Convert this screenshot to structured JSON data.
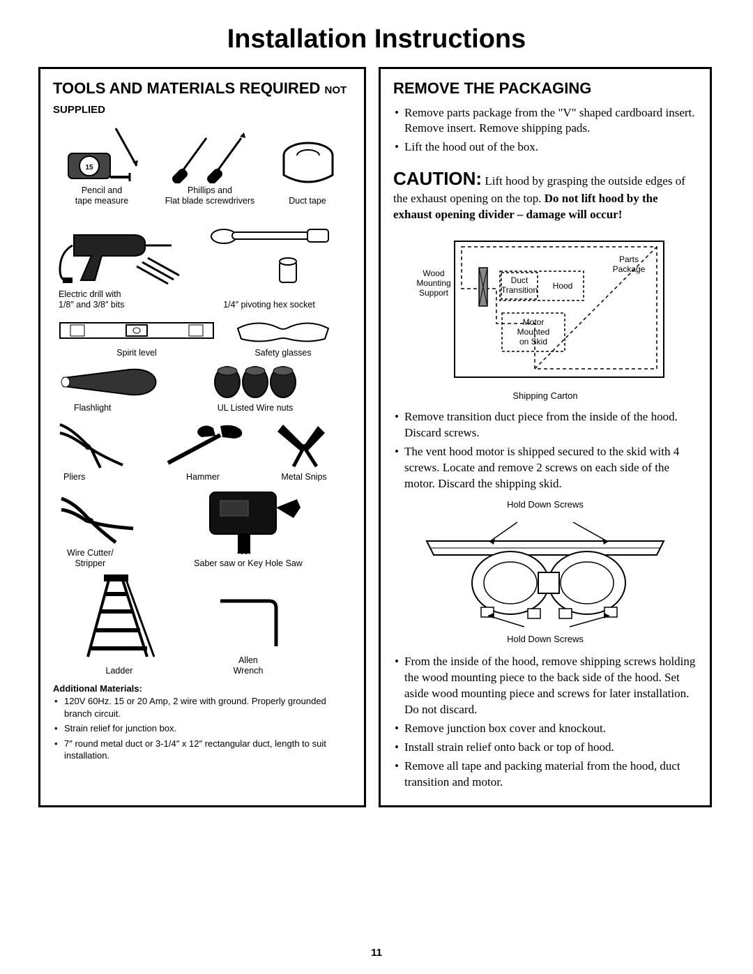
{
  "page": {
    "title": "Installation Instructions",
    "number": "11"
  },
  "left": {
    "heading_main": "TOOLS AND MATERIALS REQUIRED",
    "heading_sub": "NOT SUPPLIED",
    "tools": {
      "pencil_tape": "Pencil and\ntape measure",
      "screwdrivers": "Phillips and\nFlat blade screwdrivers",
      "duct_tape": "Duct tape",
      "drill": "Electric drill with\n1/8″ and 3/8″ bits",
      "hex_socket": "1/4″ pivoting hex socket",
      "level": "Spirit level",
      "glasses": "Safety glasses",
      "flashlight": "Flashlight",
      "wirenuts": "UL Listed Wire nuts",
      "pliers": "Pliers",
      "hammer": "Hammer",
      "snips": "Metal Snips",
      "cutter": "Wire Cutter/\nStripper",
      "saw": "Saber saw or Key Hole Saw",
      "ladder": "Ladder",
      "allen": "Allen\nWrench"
    },
    "addl_heading": "Additional Materials:",
    "addl_items": [
      "120V 60Hz. 15 or 20 Amp, 2 wire with ground. Properly grounded branch circuit.",
      "Strain relief for junction box.",
      "7″ round metal duct or 3-1/4″ x 12″ rectangular duct, length to suit installation."
    ]
  },
  "right": {
    "heading": "REMOVE THE PACKAGING",
    "intro_items": [
      "Remove parts package from the \"V\" shaped cardboard insert.  Remove insert. Remove shipping pads.",
      "Lift the hood out of the box."
    ],
    "caution_word": "CAUTION:",
    "caution_text_1": "Lift hood by grasping the outside edges of the exhaust opening on the top. ",
    "caution_bold": "Do not lift hood by the exhaust opening divider – damage will occur!",
    "diagram": {
      "wood": "Wood\nMounting\nSupport",
      "duct": "Duct\nTransition",
      "hood": "Hood",
      "parts": "Parts\nPackage",
      "motor": "Motor\nMounted\non Skid",
      "caption": "Shipping Carton"
    },
    "mid_items": [
      "Remove transition duct piece from the inside of the hood. Discard screws.",
      "The vent hood motor is shipped secured to the skid with 4 screws. Locate and remove 2 screws on each side of the motor. Discard the shipping skid."
    ],
    "motor_fig": {
      "top_label": "Hold Down Screws",
      "bottom_label": "Hold Down Screws"
    },
    "end_items": [
      "From the inside of the hood, remove shipping screws holding the wood mounting piece to the back side of the hood. Set aside wood mounting piece and screws for later installation. Do not discard.",
      "Remove junction box cover and knockout.",
      "Install strain relief onto back or top of hood.",
      "Remove all tape and packing material from the hood, duct transition and motor."
    ]
  }
}
